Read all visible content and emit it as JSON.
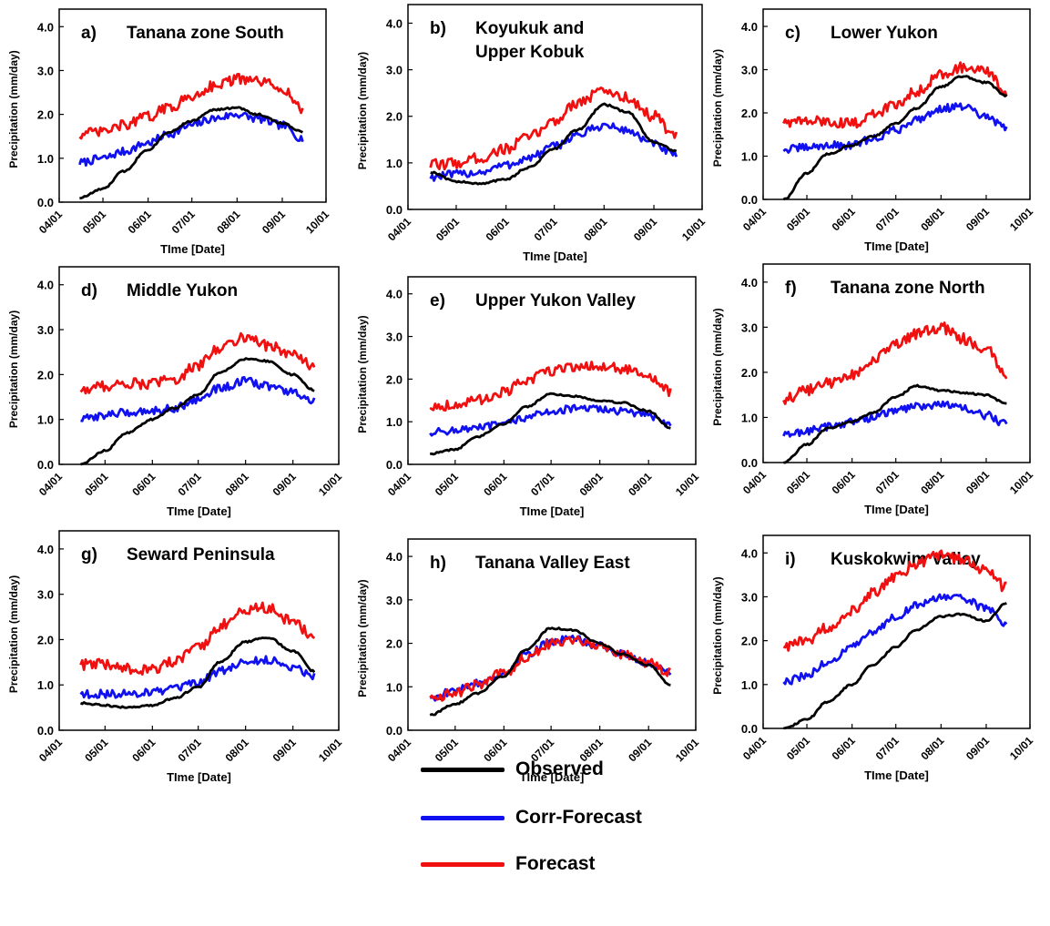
{
  "chart_data": {
    "type": "line",
    "x_ticks": [
      "04/01",
      "05/01",
      "06/01",
      "07/01",
      "08/01",
      "09/01",
      "10/01"
    ],
    "x_range": [
      "04/01",
      "10/01"
    ],
    "y_ticks": [
      "0.0",
      "1.0",
      "2.0",
      "3.0",
      "4.0"
    ],
    "ylim": [
      0,
      4.4
    ],
    "xlabel": "TIme [Date]",
    "ylabel": "Precipitation (mm/day)",
    "colors": {
      "Observed": "#000000",
      "Corr-Forecast": "#1010f0",
      "Forecast": "#f01010"
    },
    "legend": [
      "Observed",
      "Corr-Forecast",
      "Forecast"
    ],
    "panels": [
      {
        "letter": "a)",
        "title": [
          "Tanana zone South"
        ],
        "series": [
          {
            "name": "Observed",
            "x": [
              "04/15",
              "05/01",
              "05/15",
              "06/01",
              "06/15",
              "07/01",
              "07/15",
              "08/01",
              "08/15",
              "09/01",
              "09/15"
            ],
            "values": [
              0.1,
              0.3,
              0.7,
              1.2,
              1.6,
              1.85,
              2.1,
              2.15,
              2.0,
              1.8,
              1.6
            ]
          },
          {
            "name": "Corr-Forecast",
            "x": [
              "04/15",
              "05/01",
              "05/15",
              "06/01",
              "06/15",
              "07/01",
              "07/15",
              "08/01",
              "08/15",
              "09/01",
              "09/15"
            ],
            "values": [
              0.9,
              1.0,
              1.15,
              1.35,
              1.55,
              1.75,
              1.9,
              2.0,
              1.9,
              1.75,
              1.45
            ]
          },
          {
            "name": "Forecast",
            "x": [
              "04/15",
              "05/01",
              "05/15",
              "06/01",
              "06/15",
              "07/01",
              "07/15",
              "08/01",
              "08/15",
              "09/01",
              "09/15"
            ],
            "values": [
              1.55,
              1.6,
              1.75,
              1.95,
              2.15,
              2.4,
              2.65,
              2.8,
              2.75,
              2.6,
              2.1
            ]
          }
        ]
      },
      {
        "letter": "b)",
        "title": [
          "Koyukuk and",
          "Upper Kobuk"
        ],
        "series": [
          {
            "name": "Observed",
            "x": [
              "04/15",
              "05/01",
              "05/15",
              "06/01",
              "06/15",
              "07/01",
              "07/15",
              "08/01",
              "08/15",
              "09/01",
              "09/15"
            ],
            "values": [
              0.8,
              0.6,
              0.55,
              0.65,
              0.9,
              1.3,
              1.7,
              2.25,
              2.1,
              1.45,
              1.25
            ]
          },
          {
            "name": "Corr-Forecast",
            "x": [
              "04/15",
              "05/01",
              "05/15",
              "06/01",
              "06/15",
              "07/01",
              "07/15",
              "08/01",
              "08/15",
              "09/01",
              "09/15"
            ],
            "values": [
              0.7,
              0.75,
              0.8,
              0.95,
              1.1,
              1.35,
              1.6,
              1.8,
              1.7,
              1.4,
              1.15
            ]
          },
          {
            "name": "Forecast",
            "x": [
              "04/15",
              "05/01",
              "05/15",
              "06/01",
              "06/15",
              "07/01",
              "07/15",
              "08/01",
              "08/15",
              "09/01",
              "09/15"
            ],
            "values": [
              0.95,
              1.0,
              1.1,
              1.3,
              1.55,
              1.9,
              2.3,
              2.55,
              2.4,
              2.0,
              1.55
            ]
          }
        ]
      },
      {
        "letter": "c)",
        "title": [
          "Lower Yukon"
        ],
        "series": [
          {
            "name": "Observed",
            "x": [
              "04/15",
              "05/01",
              "05/15",
              "06/01",
              "06/15",
              "07/01",
              "07/15",
              "08/01",
              "08/15",
              "09/01",
              "09/15"
            ],
            "values": [
              0.0,
              0.6,
              1.05,
              1.25,
              1.45,
              1.75,
              2.1,
              2.6,
              2.85,
              2.7,
              2.4
            ]
          },
          {
            "name": "Corr-Forecast",
            "x": [
              "04/15",
              "05/01",
              "05/15",
              "06/01",
              "06/15",
              "07/01",
              "07/15",
              "08/01",
              "08/15",
              "09/01",
              "09/15"
            ],
            "values": [
              1.15,
              1.2,
              1.25,
              1.25,
              1.4,
              1.6,
              1.85,
              2.1,
              2.15,
              1.9,
              1.65
            ]
          },
          {
            "name": "Forecast",
            "x": [
              "04/15",
              "05/01",
              "05/15",
              "06/01",
              "06/15",
              "07/01",
              "07/15",
              "08/01",
              "08/15",
              "09/01",
              "09/15"
            ],
            "values": [
              1.8,
              1.8,
              1.8,
              1.75,
              1.95,
              2.2,
              2.5,
              2.9,
              3.05,
              2.95,
              2.45
            ]
          }
        ]
      },
      {
        "letter": "d)",
        "title": [
          "Middle Yukon"
        ],
        "series": [
          {
            "name": "Observed",
            "x": [
              "04/15",
              "05/01",
              "05/15",
              "06/01",
              "06/15",
              "07/01",
              "07/15",
              "08/01",
              "08/15",
              "09/01",
              "09/15"
            ],
            "values": [
              0.0,
              0.3,
              0.7,
              1.0,
              1.25,
              1.55,
              2.05,
              2.35,
              2.3,
              2.0,
              1.65
            ]
          },
          {
            "name": "Corr-Forecast",
            "x": [
              "04/15",
              "05/01",
              "05/15",
              "06/01",
              "06/15",
              "07/01",
              "07/15",
              "08/01",
              "08/15",
              "09/01",
              "09/15"
            ],
            "values": [
              1.0,
              1.1,
              1.15,
              1.2,
              1.25,
              1.45,
              1.7,
              1.85,
              1.75,
              1.6,
              1.4
            ]
          },
          {
            "name": "Forecast",
            "x": [
              "04/15",
              "05/01",
              "05/15",
              "06/01",
              "06/15",
              "07/01",
              "07/15",
              "08/01",
              "08/15",
              "09/01",
              "09/15"
            ],
            "values": [
              1.65,
              1.75,
              1.8,
              1.8,
              1.9,
              2.2,
              2.6,
              2.85,
              2.65,
              2.45,
              2.15
            ]
          }
        ]
      },
      {
        "letter": "e)",
        "title": [
          "Upper Yukon Valley"
        ],
        "series": [
          {
            "name": "Observed",
            "x": [
              "04/15",
              "05/01",
              "05/15",
              "06/01",
              "06/15",
              "07/01",
              "07/15",
              "08/01",
              "08/15",
              "09/01",
              "09/15"
            ],
            "values": [
              0.25,
              0.35,
              0.65,
              0.95,
              1.35,
              1.65,
              1.6,
              1.5,
              1.45,
              1.25,
              0.85
            ]
          },
          {
            "name": "Corr-Forecast",
            "x": [
              "04/15",
              "05/01",
              "05/15",
              "06/01",
              "06/15",
              "07/01",
              "07/15",
              "08/01",
              "08/15",
              "09/01",
              "09/15"
            ],
            "values": [
              0.75,
              0.8,
              0.85,
              0.95,
              1.1,
              1.25,
              1.3,
              1.3,
              1.25,
              1.15,
              0.95
            ]
          },
          {
            "name": "Forecast",
            "x": [
              "04/15",
              "05/01",
              "05/15",
              "06/01",
              "06/15",
              "07/01",
              "07/15",
              "08/01",
              "08/15",
              "09/01",
              "09/15"
            ],
            "values": [
              1.35,
              1.4,
              1.5,
              1.7,
              1.95,
              2.2,
              2.3,
              2.3,
              2.25,
              2.05,
              1.7
            ]
          }
        ]
      },
      {
        "letter": "f)",
        "title": [
          "Tanana zone North"
        ],
        "series": [
          {
            "name": "Observed",
            "x": [
              "04/15",
              "05/01",
              "05/15",
              "06/01",
              "06/15",
              "07/01",
              "07/15",
              "08/01",
              "08/15",
              "09/01",
              "09/15"
            ],
            "values": [
              0.0,
              0.4,
              0.75,
              0.9,
              1.1,
              1.45,
              1.7,
              1.6,
              1.55,
              1.5,
              1.3
            ]
          },
          {
            "name": "Corr-Forecast",
            "x": [
              "04/15",
              "05/01",
              "05/15",
              "06/01",
              "06/15",
              "07/01",
              "07/15",
              "08/01",
              "08/15",
              "09/01",
              "09/15"
            ],
            "values": [
              0.6,
              0.7,
              0.8,
              0.9,
              1.0,
              1.15,
              1.25,
              1.3,
              1.2,
              1.05,
              0.85
            ]
          },
          {
            "name": "Forecast",
            "x": [
              "04/15",
              "05/01",
              "05/15",
              "06/01",
              "06/15",
              "07/01",
              "07/15",
              "08/01",
              "08/15",
              "09/01",
              "09/15"
            ],
            "values": [
              1.4,
              1.6,
              1.75,
              1.95,
              2.25,
              2.6,
              2.85,
              3.0,
              2.75,
              2.5,
              1.95
            ]
          }
        ]
      },
      {
        "letter": "g)",
        "title": [
          "Seward Peninsula"
        ],
        "series": [
          {
            "name": "Observed",
            "x": [
              "04/15",
              "05/01",
              "05/15",
              "06/01",
              "06/15",
              "07/01",
              "07/15",
              "08/01",
              "08/15",
              "09/01",
              "09/15"
            ],
            "values": [
              0.6,
              0.55,
              0.5,
              0.55,
              0.7,
              0.95,
              1.5,
              1.95,
              2.05,
              1.75,
              1.3
            ]
          },
          {
            "name": "Corr-Forecast",
            "x": [
              "04/15",
              "05/01",
              "05/15",
              "06/01",
              "06/15",
              "07/01",
              "07/15",
              "08/01",
              "08/15",
              "09/01",
              "09/15"
            ],
            "values": [
              0.8,
              0.8,
              0.8,
              0.85,
              0.9,
              1.05,
              1.3,
              1.5,
              1.55,
              1.4,
              1.2
            ]
          },
          {
            "name": "Forecast",
            "x": [
              "04/15",
              "05/01",
              "05/15",
              "06/01",
              "06/15",
              "07/01",
              "07/15",
              "08/01",
              "08/15",
              "09/01",
              "09/15"
            ],
            "values": [
              1.45,
              1.45,
              1.35,
              1.35,
              1.5,
              1.8,
              2.3,
              2.65,
              2.7,
              2.4,
              2.05
            ]
          }
        ]
      },
      {
        "letter": "h)",
        "title": [
          "Tanana Valley East"
        ],
        "series": [
          {
            "name": "Observed",
            "x": [
              "04/15",
              "05/01",
              "05/15",
              "06/01",
              "06/15",
              "07/01",
              "07/15",
              "08/01",
              "08/15",
              "09/01",
              "09/15"
            ],
            "values": [
              0.35,
              0.6,
              0.85,
              1.25,
              1.85,
              2.35,
              2.3,
              2.0,
              1.75,
              1.5,
              1.05
            ]
          },
          {
            "name": "Corr-Forecast",
            "x": [
              "04/15",
              "05/01",
              "05/15",
              "06/01",
              "06/15",
              "07/01",
              "07/15",
              "08/01",
              "08/15",
              "09/01",
              "09/15"
            ],
            "values": [
              0.75,
              0.9,
              1.1,
              1.3,
              1.75,
              2.05,
              2.1,
              1.95,
              1.75,
              1.55,
              1.35
            ]
          },
          {
            "name": "Forecast",
            "x": [
              "04/15",
              "05/01",
              "05/15",
              "06/01",
              "06/15",
              "07/01",
              "07/15",
              "08/01",
              "08/15",
              "09/01",
              "09/15"
            ],
            "values": [
              0.75,
              0.85,
              1.05,
              1.3,
              1.7,
              2.0,
              2.1,
              1.95,
              1.75,
              1.55,
              1.35
            ]
          }
        ]
      },
      {
        "letter": "i)",
        "title": [
          "Kuskokwim Valley"
        ],
        "series": [
          {
            "name": "Observed",
            "x": [
              "04/15",
              "05/01",
              "05/15",
              "06/01",
              "06/15",
              "07/01",
              "07/15",
              "08/01",
              "08/15",
              "09/01",
              "09/15"
            ],
            "values": [
              0.0,
              0.2,
              0.6,
              1.0,
              1.45,
              1.85,
              2.25,
              2.55,
              2.6,
              2.45,
              2.85
            ]
          },
          {
            "name": "Corr-Forecast",
            "x": [
              "04/15",
              "05/01",
              "05/15",
              "06/01",
              "06/15",
              "07/01",
              "07/15",
              "08/01",
              "08/15",
              "09/01",
              "09/15"
            ],
            "values": [
              1.05,
              1.2,
              1.5,
              1.85,
              2.2,
              2.55,
              2.8,
              3.0,
              2.95,
              2.75,
              2.4
            ]
          },
          {
            "name": "Forecast",
            "x": [
              "04/15",
              "05/01",
              "05/15",
              "06/01",
              "06/15",
              "07/01",
              "07/15",
              "08/01",
              "08/15",
              "09/01",
              "09/15"
            ],
            "values": [
              1.85,
              2.0,
              2.3,
              2.7,
              3.1,
              3.45,
              3.75,
              3.95,
              3.85,
              3.6,
              3.2
            ]
          }
        ]
      }
    ]
  }
}
